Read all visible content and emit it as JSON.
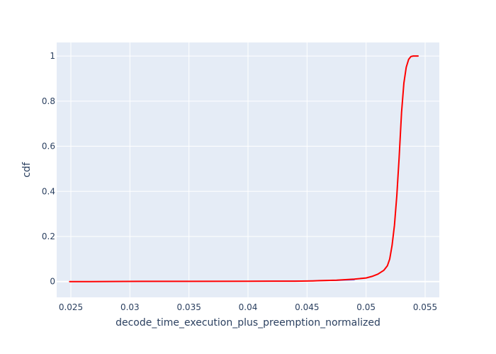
{
  "chart_data": {
    "type": "line",
    "title": "",
    "xlabel": "decode_time_execution_plus_preemption_normalized",
    "ylabel": "cdf",
    "xlim": [
      0.0238,
      0.0562
    ],
    "ylim": [
      -0.07,
      1.06
    ],
    "x_ticks": [
      0.025,
      0.03,
      0.035,
      0.04,
      0.045,
      0.05,
      0.055
    ],
    "x_tick_labels": [
      "0.025",
      "0.03",
      "0.035",
      "0.04",
      "0.045",
      "0.05",
      "0.055"
    ],
    "y_ticks": [
      0,
      0.2,
      0.4,
      0.6,
      0.8,
      1
    ],
    "y_tick_labels": [
      "0",
      "0.2",
      "0.4",
      "0.6",
      "0.8",
      "1"
    ],
    "grid": true,
    "colors": {
      "plot_bg": "#e5ecf6",
      "grid": "#ffffff",
      "text": "#2a3f5f"
    },
    "series": [
      {
        "color": "#636efa",
        "x": [
          0.0249,
          0.027,
          0.031,
          0.035,
          0.04,
          0.045,
          0.0475,
          0.049
        ],
        "y": [
          0,
          0,
          0.0005,
          0.001,
          0.0015,
          0.003,
          0.005,
          0.008
        ]
      },
      {
        "color": "#ff0000",
        "x": [
          0.0249,
          0.0265,
          0.031,
          0.035,
          0.04,
          0.044,
          0.0455,
          0.046,
          0.0475,
          0.048,
          0.049,
          0.05,
          0.0505,
          0.051,
          0.0515,
          0.0518,
          0.052,
          0.0522,
          0.0524,
          0.0526,
          0.0528,
          0.053,
          0.0532,
          0.0534,
          0.0536,
          0.0538,
          0.054,
          0.0542,
          0.0544
        ],
        "y": [
          0,
          0,
          0.001,
          0.001,
          0.0015,
          0.002,
          0.003,
          0.004,
          0.006,
          0.008,
          0.011,
          0.016,
          0.023,
          0.033,
          0.05,
          0.07,
          0.1,
          0.16,
          0.25,
          0.38,
          0.55,
          0.75,
          0.88,
          0.95,
          0.985,
          0.998,
          1.0,
          1.0,
          1.0
        ]
      }
    ]
  }
}
